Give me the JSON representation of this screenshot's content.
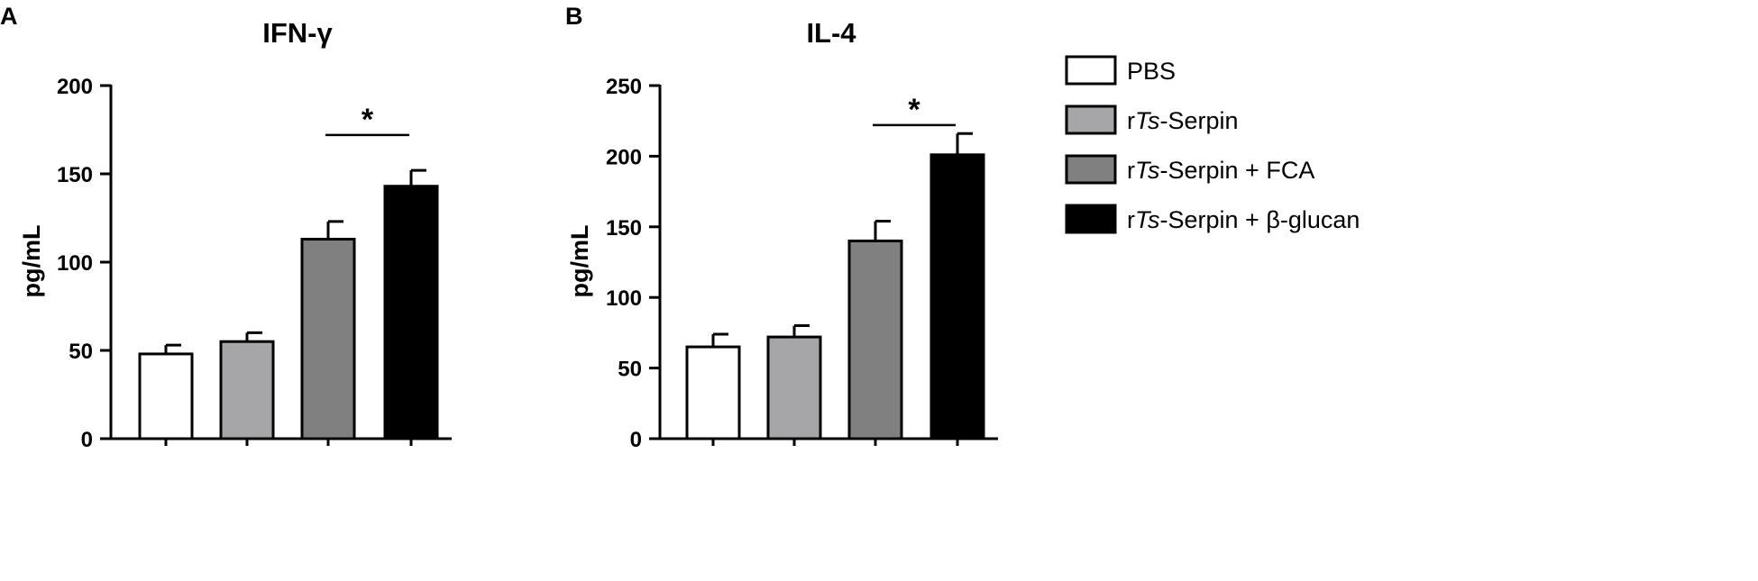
{
  "panels": [
    {
      "letter": "A",
      "chart_data": {
        "type": "bar",
        "title": "IFN-γ",
        "xlabel": "",
        "ylabel": "pg/mL",
        "ylim": [
          0,
          200
        ],
        "yticks": [
          0,
          50,
          100,
          150,
          200
        ],
        "categories": [
          "PBS",
          "rTs-Serpin",
          "rTs-Serpin + FCA",
          "rTs-Serpin + β-glucan"
        ],
        "values": [
          48,
          55,
          113,
          143
        ],
        "errors": [
          5,
          5,
          10,
          9
        ],
        "significance": [
          {
            "from": 2,
            "to": 3,
            "label": "*",
            "y": 172
          }
        ]
      }
    },
    {
      "letter": "B",
      "chart_data": {
        "type": "bar",
        "title": "IL-4",
        "xlabel": "",
        "ylabel": "pg/mL",
        "ylim": [
          0,
          250
        ],
        "yticks": [
          0,
          50,
          100,
          150,
          200,
          250
        ],
        "categories": [
          "PBS",
          "rTs-Serpin",
          "rTs-Serpin + FCA",
          "rTs-Serpin + β-glucan"
        ],
        "values": [
          65,
          72,
          140,
          201
        ],
        "errors": [
          9,
          8,
          14,
          15
        ],
        "significance": [
          {
            "from": 2,
            "to": 3,
            "label": "*",
            "y": 222
          }
        ]
      }
    }
  ],
  "legend": {
    "position": "right",
    "items": [
      {
        "label": "PBS",
        "prefix": "",
        "italic": "",
        "suffix": "PBS",
        "fill": "#ffffff"
      },
      {
        "label": "rTs-Serpin",
        "prefix": "r",
        "italic": "Ts",
        "suffix": "-Serpin",
        "fill": "#a6a6a8"
      },
      {
        "label": "rTs-Serpin + FCA",
        "prefix": "r",
        "italic": "Ts",
        "suffix": "-Serpin + FCA",
        "fill": "#808080"
      },
      {
        "label": "rTs-Serpin + β-glucan",
        "prefix": "r",
        "italic": "Ts",
        "suffix": "-Serpin + β-glucan",
        "fill": "#000000"
      }
    ]
  }
}
